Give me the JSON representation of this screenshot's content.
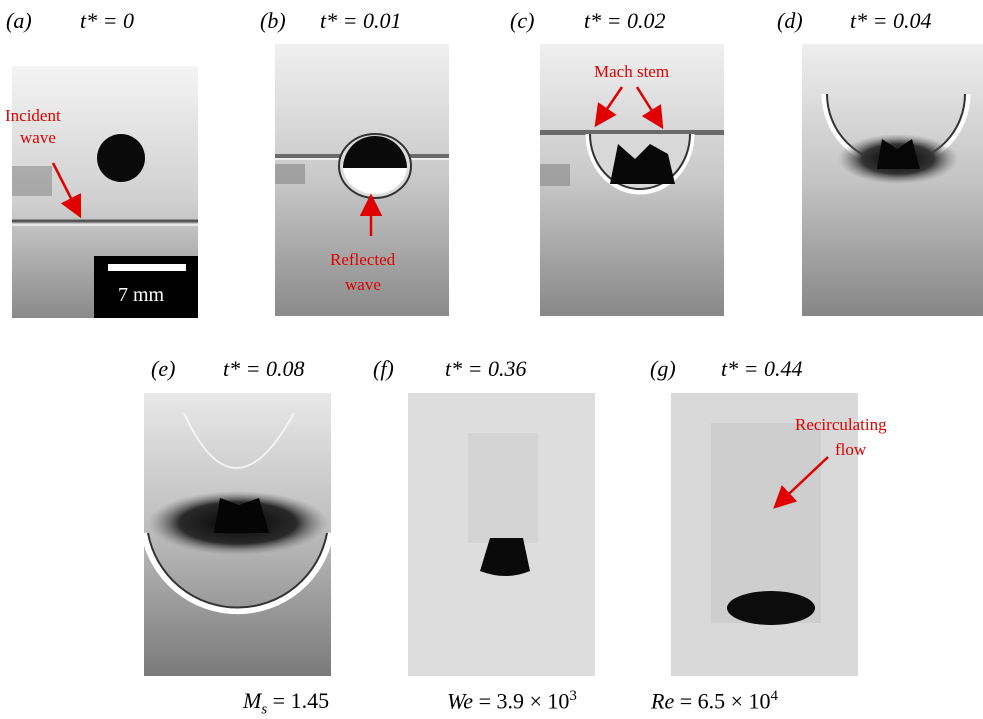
{
  "panels": [
    {
      "id": "a",
      "letter": "(a)",
      "time": "t* = 0"
    },
    {
      "id": "b",
      "letter": "(b)",
      "time": "t* = 0.01"
    },
    {
      "id": "c",
      "letter": "(c)",
      "time": "t* = 0.02"
    },
    {
      "id": "d",
      "letter": "(d)",
      "time": "t* = 0.04"
    },
    {
      "id": "e",
      "letter": "(e)",
      "time": "t* = 0.08"
    },
    {
      "id": "f",
      "letter": "(f)",
      "time": "t* = 0.36"
    },
    {
      "id": "g",
      "letter": "(g)",
      "time": "t* = 0.44"
    }
  ],
  "annotations": {
    "incident": [
      "Incident",
      "wave"
    ],
    "reflected": [
      "Reflected",
      "wave"
    ],
    "mach": "Mach stem",
    "recirculating": [
      "Recirculating",
      "flow"
    ]
  },
  "scale_bar": "7 mm",
  "parameters": {
    "ms": {
      "symbol": "M",
      "sub": "s",
      "value": " = 1.45"
    },
    "we": {
      "symbol": "We",
      "value": " = 3.9 × 10",
      "exp": "3"
    },
    "re": {
      "symbol": "Re",
      "value": " = 6.5 × 10",
      "exp": "4"
    }
  },
  "colors": {
    "annotation": "#e00000"
  }
}
